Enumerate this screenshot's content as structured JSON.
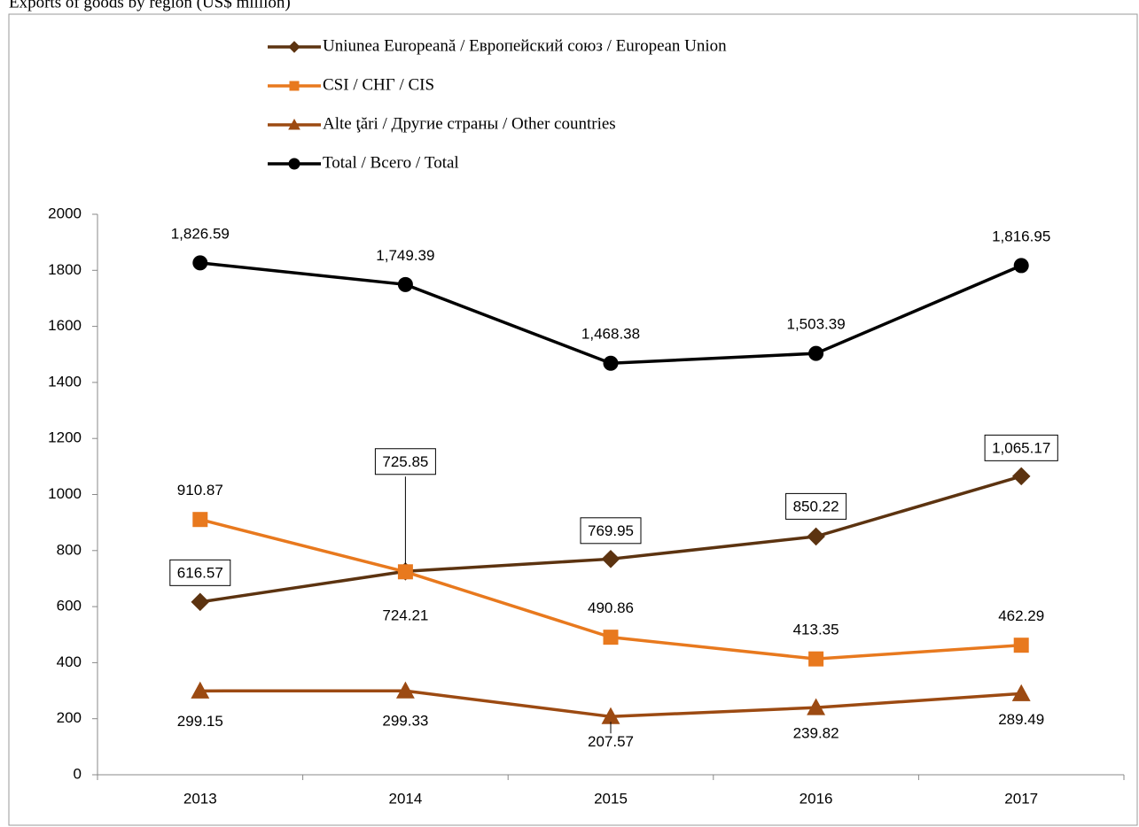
{
  "chart_data": {
    "type": "line",
    "title": "Exports of goods by region (US$ million)",
    "categories": [
      "2013",
      "2014",
      "2015",
      "2016",
      "2017"
    ],
    "series": [
      {
        "name": "Uniunea Europeană / Европейский союз / European Union",
        "color": "#5c3310",
        "marker": "diamond",
        "values": [
          616.57,
          725.85,
          769.95,
          850.22,
          1065.17
        ],
        "value_labels": [
          "616.57",
          "725.85",
          "769.95",
          "850.22",
          "1,065.17"
        ]
      },
      {
        "name": "CSI / СНГ / CIS",
        "color": "#e8791e",
        "marker": "square",
        "values": [
          910.87,
          724.21,
          490.86,
          413.35,
          462.29
        ]
      },
      {
        "name": "Alte ţări / Другие страны / Other countries",
        "color": "#9c4a12",
        "marker": "triangle",
        "values": [
          299.15,
          299.33,
          207.57,
          239.82,
          289.49
        ]
      },
      {
        "name": "Total / Всего / Total",
        "color": "#000000",
        "marker": "circle",
        "values": [
          1826.59,
          1749.39,
          1468.38,
          1503.39,
          1816.95
        ],
        "value_labels": [
          "1,826.59",
          "1,749.39",
          "1,468.38",
          "1,503.39",
          "1,816.95"
        ]
      }
    ],
    "ylim": [
      0,
      2000
    ],
    "yticks": [
      0,
      200,
      400,
      600,
      800,
      1000,
      1200,
      1400,
      1600,
      1800,
      2000
    ],
    "grid": false,
    "legend": "top"
  }
}
